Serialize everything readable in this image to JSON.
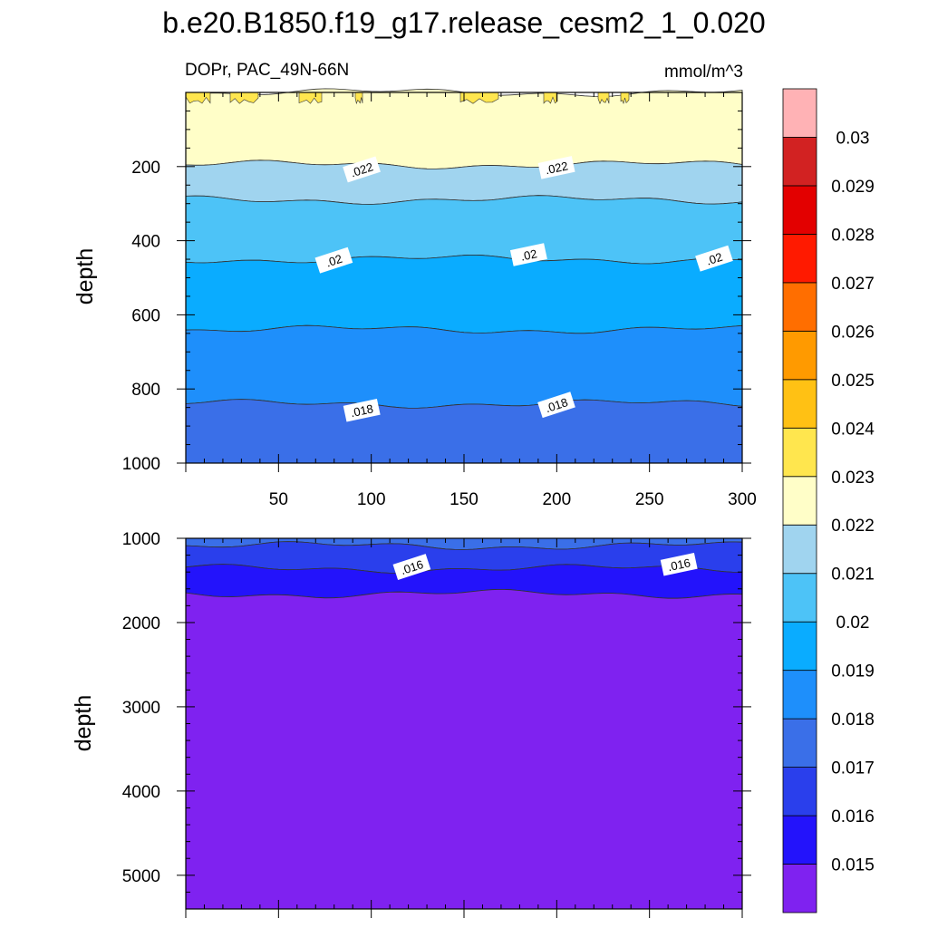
{
  "figure_title": "b.e20.B1850.f19_g17.release_cesm2_1_0.020",
  "chart_data": {
    "type": "heatmap",
    "variable_label": "DOPr, PAC_49N-66N",
    "units": "mmol/m^3",
    "colorbar": {
      "labels": [
        "0.015",
        "0.016",
        "0.017",
        "0.018",
        "0.019",
        "0.02",
        "0.021",
        "0.022",
        "0.023",
        "0.024",
        "0.025",
        "0.026",
        "0.027",
        "0.028",
        "0.029",
        "0.03"
      ],
      "colors": [
        "#7f22f0",
        "#2313fb",
        "#2a3fec",
        "#3a6fe8",
        "#1e8ffb",
        "#0aacff",
        "#4dc3f7",
        "#a0d4ef",
        "#fffec8",
        "#ffe64e",
        "#ffc114",
        "#ff9a00",
        "#ff6e00",
        "#ff1a00",
        "#e30000",
        "#d22222",
        "#ffb2b5"
      ]
    },
    "panels": [
      {
        "name": "upper",
        "ylabel": "depth",
        "xlim": [
          0,
          300
        ],
        "ylim": [
          1000,
          0
        ],
        "x_ticks": [
          50,
          100,
          150,
          200,
          250,
          300
        ],
        "y_ticks": [
          200,
          400,
          600,
          800,
          1000
        ],
        "bands": [
          {
            "level": "0.023",
            "from": 0,
            "to": 30,
            "note": "intermittent"
          },
          {
            "level": "0.022",
            "from": 0,
            "to": 195
          },
          {
            "level": "0.021",
            "from": 195,
            "to": 290
          },
          {
            "level": "0.02",
            "from": 290,
            "to": 450
          },
          {
            "level": "0.019",
            "from": 450,
            "to": 640
          },
          {
            "level": "0.018",
            "from": 640,
            "to": 840
          },
          {
            "level": "0.017",
            "from": 840,
            "to": 1000
          }
        ],
        "contour_labels": [
          {
            "text": ".022",
            "x": 95,
            "depth": 210
          },
          {
            "text": ".022",
            "x": 200,
            "depth": 205
          },
          {
            "text": ".02",
            "x": 80,
            "depth": 455
          },
          {
            "text": ".02",
            "x": 185,
            "depth": 440
          },
          {
            "text": ".02",
            "x": 285,
            "depth": 450
          },
          {
            "text": ".018",
            "x": 95,
            "depth": 860
          },
          {
            "text": ".018",
            "x": 200,
            "depth": 845
          }
        ]
      },
      {
        "name": "lower",
        "ylabel": "depth",
        "xlim": [
          0,
          300
        ],
        "ylim": [
          5400,
          1000
        ],
        "y_ticks": [
          1000,
          2000,
          3000,
          4000,
          5000
        ],
        "bands": [
          {
            "level": "0.017",
            "from": 1000,
            "to": 1090
          },
          {
            "level": "0.016",
            "from": 1090,
            "to": 1360
          },
          {
            "level": "0.015",
            "from": 1360,
            "to": 1660
          },
          {
            "level": "< 0.015",
            "from": 1660,
            "to": 5400
          }
        ],
        "contour_labels": [
          {
            "text": ".016",
            "x": 122,
            "depth": 1350
          },
          {
            "text": ".016",
            "x": 266,
            "depth": 1320
          }
        ]
      }
    ]
  }
}
